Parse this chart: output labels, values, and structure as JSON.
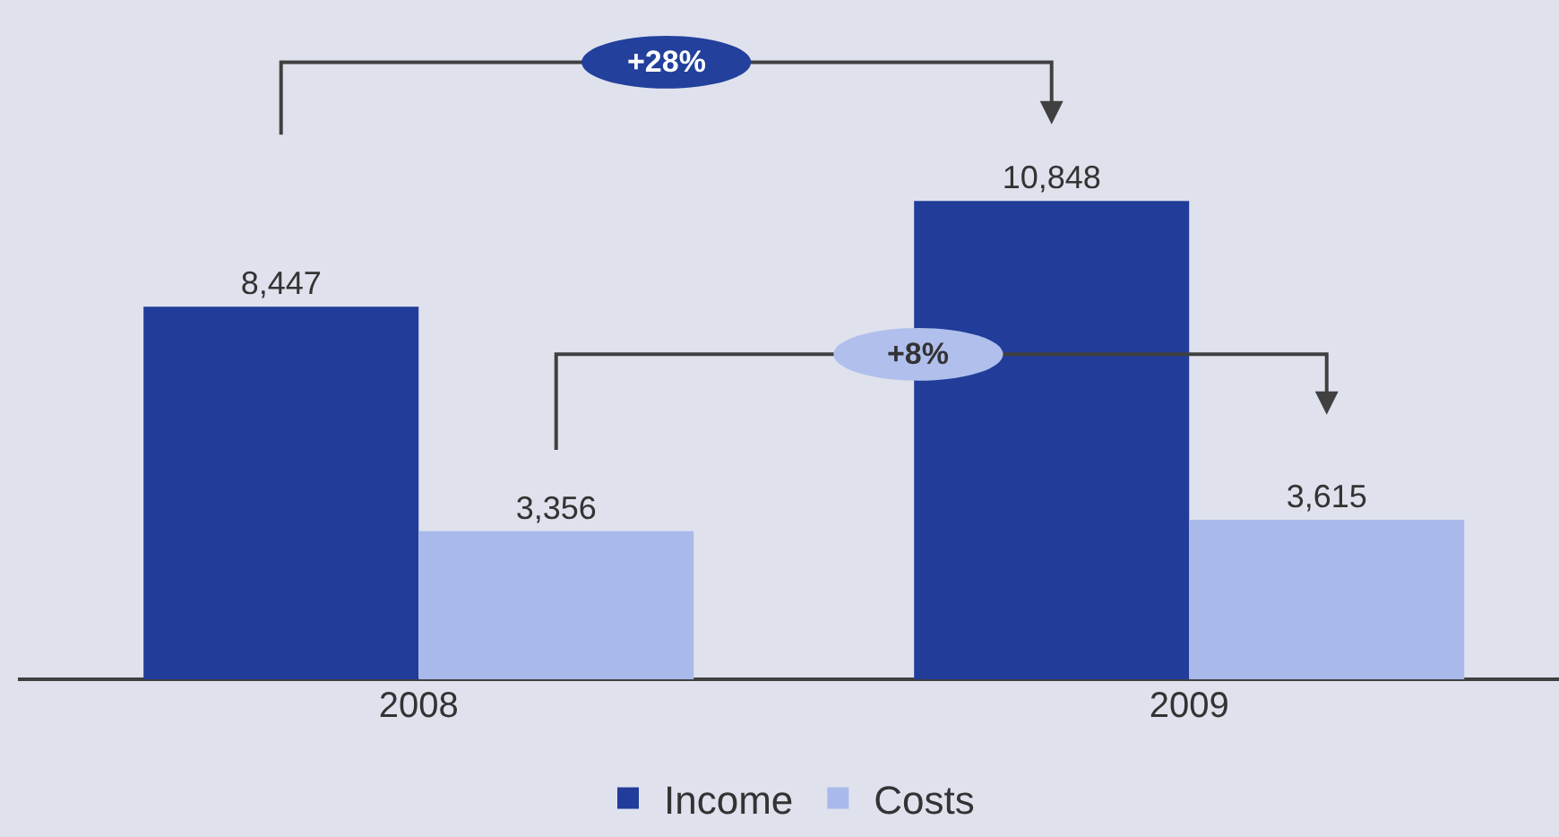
{
  "chart_data": {
    "type": "bar",
    "categories": [
      "2008",
      "2009"
    ],
    "series": [
      {
        "name": "Income",
        "color": "#213d99",
        "values": [
          8447,
          10848
        ],
        "value_labels": [
          "8,447",
          "10,848"
        ]
      },
      {
        "name": "Costs",
        "color": "#a9b9ea",
        "values": [
          3356,
          3615
        ],
        "value_labels": [
          "3,356",
          "3,615"
        ]
      }
    ],
    "annotations": [
      "+28%",
      "+8%"
    ],
    "legend": "bottom",
    "grid": false,
    "tick_labels": "x"
  }
}
